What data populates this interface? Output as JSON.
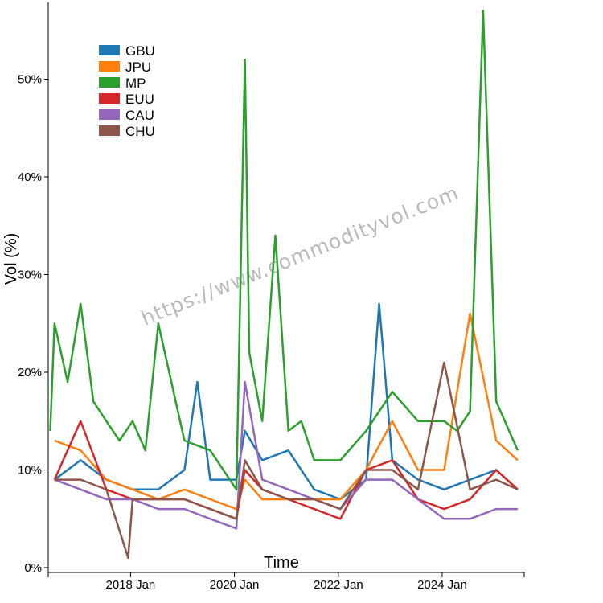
{
  "chart_data": {
    "type": "line",
    "xlabel": "Time",
    "ylabel": "Vol (%)",
    "x_ticks": [
      "2018 Jan",
      "2020 Jan",
      "2022 Jan",
      "2024 Jan"
    ],
    "y_ticks": [
      "0%",
      "10%",
      "20%",
      "30%",
      "40%",
      "50%"
    ],
    "ylim": [
      0,
      58
    ],
    "xlim": [
      "2016-06-01",
      "2025-07-31"
    ],
    "watermark": "https://www.commodityvol.com",
    "legend_position": "top-left",
    "series": [
      {
        "name": "GBU",
        "color": "#1f77b4",
        "x": [
          "2016-07",
          "2017-01",
          "2017-07",
          "2018-01",
          "2018-07",
          "2019-01",
          "2019-04",
          "2019-07",
          "2020-01",
          "2020-03",
          "2020-07",
          "2021-01",
          "2021-07",
          "2022-01",
          "2022-07",
          "2022-10",
          "2023-01",
          "2023-07",
          "2024-01",
          "2024-07",
          "2025-01",
          "2025-06"
        ],
        "y": [
          9,
          11,
          9,
          8,
          8,
          10,
          19,
          9,
          9,
          14,
          11,
          12,
          8,
          7,
          9,
          27,
          11,
          9,
          8,
          9,
          10,
          8
        ]
      },
      {
        "name": "JPU",
        "color": "#ff7f0e",
        "x": [
          "2016-07",
          "2017-01",
          "2017-07",
          "2018-01",
          "2018-07",
          "2019-01",
          "2019-07",
          "2020-01",
          "2020-03",
          "2020-07",
          "2021-01",
          "2021-07",
          "2022-01",
          "2022-07",
          "2023-01",
          "2023-07",
          "2024-01",
          "2024-07",
          "2025-01",
          "2025-06"
        ],
        "y": [
          13,
          12,
          9,
          8,
          7,
          8,
          7,
          6,
          9,
          7,
          7,
          7,
          7,
          10,
          15,
          10,
          10,
          26,
          13,
          11
        ]
      },
      {
        "name": "MP",
        "color": "#2ca02c",
        "x": [
          "2016-06",
          "2016-07",
          "2016-10",
          "2017-01",
          "2017-04",
          "2017-07",
          "2017-10",
          "2018-01",
          "2018-04",
          "2018-07",
          "2019-01",
          "2019-07",
          "2020-01",
          "2020-03",
          "2020-04",
          "2020-07",
          "2020-10",
          "2021-01",
          "2021-04",
          "2021-07",
          "2022-01",
          "2022-07",
          "2023-01",
          "2023-07",
          "2024-01",
          "2024-04",
          "2024-07",
          "2024-10",
          "2025-01",
          "2025-06"
        ],
        "y": [
          14,
          25,
          19,
          27,
          17,
          15,
          13,
          15,
          12,
          25,
          13,
          12,
          8,
          52,
          22,
          15,
          34,
          14,
          15,
          11,
          11,
          14,
          18,
          15,
          15,
          14,
          16,
          57,
          17,
          12
        ]
      },
      {
        "name": "EUU",
        "color": "#d62728",
        "x": [
          "2016-07",
          "2017-01",
          "2017-07",
          "2018-01",
          "2018-07",
          "2019-01",
          "2019-07",
          "2020-01",
          "2020-03",
          "2020-07",
          "2021-01",
          "2021-07",
          "2022-01",
          "2022-07",
          "2023-01",
          "2023-07",
          "2024-01",
          "2024-07",
          "2025-01",
          "2025-06"
        ],
        "y": [
          9,
          15,
          8,
          7,
          7,
          7,
          6,
          5,
          10,
          8,
          7,
          6,
          5,
          10,
          11,
          7,
          6,
          7,
          10,
          8
        ]
      },
      {
        "name": "CAU",
        "color": "#9467bd",
        "x": [
          "2016-07",
          "2017-01",
          "2017-07",
          "2018-01",
          "2018-07",
          "2019-01",
          "2019-07",
          "2020-01",
          "2020-03",
          "2020-07",
          "2021-01",
          "2021-07",
          "2022-01",
          "2022-07",
          "2023-01",
          "2023-07",
          "2024-01",
          "2024-07",
          "2025-01",
          "2025-06"
        ],
        "y": [
          9,
          8,
          7,
          7,
          6,
          6,
          5,
          4,
          19,
          9,
          8,
          7,
          6,
          9,
          9,
          7,
          5,
          5,
          6,
          6
        ]
      },
      {
        "name": "CHU",
        "color": "#8c564b",
        "x": [
          "2016-07",
          "2017-01",
          "2017-07",
          "2017-12",
          "2018-01",
          "2018-07",
          "2019-01",
          "2019-07",
          "2020-01",
          "2020-03",
          "2020-07",
          "2021-01",
          "2021-07",
          "2022-01",
          "2022-07",
          "2023-01",
          "2023-07",
          "2024-01",
          "2024-07",
          "2025-01",
          "2025-06"
        ],
        "y": [
          9,
          9,
          8,
          1,
          7,
          7,
          7,
          6,
          5,
          11,
          8,
          7,
          7,
          6,
          10,
          10,
          8,
          21,
          8,
          9,
          8
        ]
      }
    ]
  }
}
